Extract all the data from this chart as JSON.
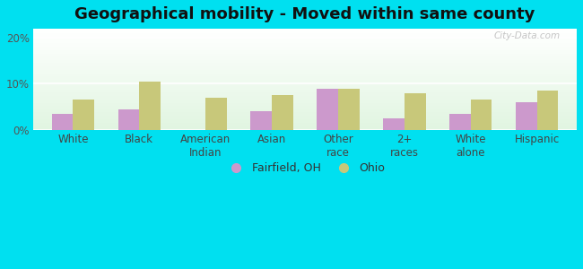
{
  "title": "Geographical mobility - Moved within same county",
  "categories": [
    "White",
    "Black",
    "American\nIndian",
    "Asian",
    "Other\nrace",
    "2+\nraces",
    "White\nalone",
    "Hispanic"
  ],
  "fairfield_values": [
    3.5,
    4.5,
    0,
    4.0,
    9.0,
    2.5,
    3.5,
    6.0
  ],
  "ohio_values": [
    6.5,
    10.5,
    7.0,
    7.5,
    9.0,
    8.0,
    6.5,
    8.5
  ],
  "fairfield_color": "#cc99cc",
  "ohio_color": "#c8c87a",
  "ylim": [
    0,
    22
  ],
  "yticks": [
    0,
    10,
    20
  ],
  "ytick_labels": [
    "0%",
    "10%",
    "20%"
  ],
  "bar_width": 0.32,
  "background_outer": "#00e0f0",
  "legend_fairfield": "Fairfield, OH",
  "legend_ohio": "Ohio",
  "watermark": "City-Data.com",
  "title_fontsize": 13,
  "axis_label_fontsize": 8.5,
  "legend_fontsize": 9
}
